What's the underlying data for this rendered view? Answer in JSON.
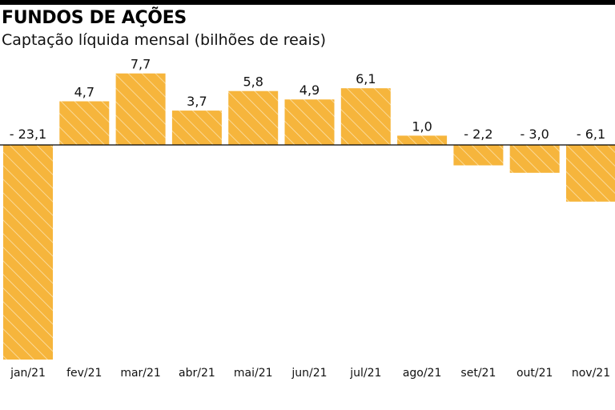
{
  "header": {
    "title": "FUNDOS DE AÇÕES",
    "subtitle": "Captação líquida mensal (bilhões de reais)"
  },
  "colors": {
    "bar_fill": "#f6b53c",
    "hatch": "#fbe2ad",
    "axis": "#000000",
    "text": "#111111"
  },
  "chart_data": {
    "type": "bar",
    "categories": [
      "jan/21",
      "fev/21",
      "mar/21",
      "abr/21",
      "mai/21",
      "jun/21",
      "jul/21",
      "ago/21",
      "set/21",
      "out/21",
      "nov/21"
    ],
    "values": [
      -23.1,
      4.7,
      7.7,
      3.7,
      5.8,
      4.9,
      6.1,
      1.0,
      -2.2,
      -3.0,
      -6.1
    ],
    "value_labels": [
      "- 23,1",
      "4,7",
      "7,7",
      "3,7",
      "5,8",
      "4,9",
      "6,1",
      "1,0",
      "- 2,2",
      "- 3,0",
      "- 6,1"
    ],
    "title": "FUNDOS DE AÇÕES",
    "subtitle": "Captação líquida mensal (bilhões de reais)",
    "xlabel": "",
    "ylabel": "",
    "ylim": [
      -23.1,
      7.7
    ],
    "grid": false,
    "legend": "none",
    "bar_pattern": "diagonal-hatch"
  }
}
